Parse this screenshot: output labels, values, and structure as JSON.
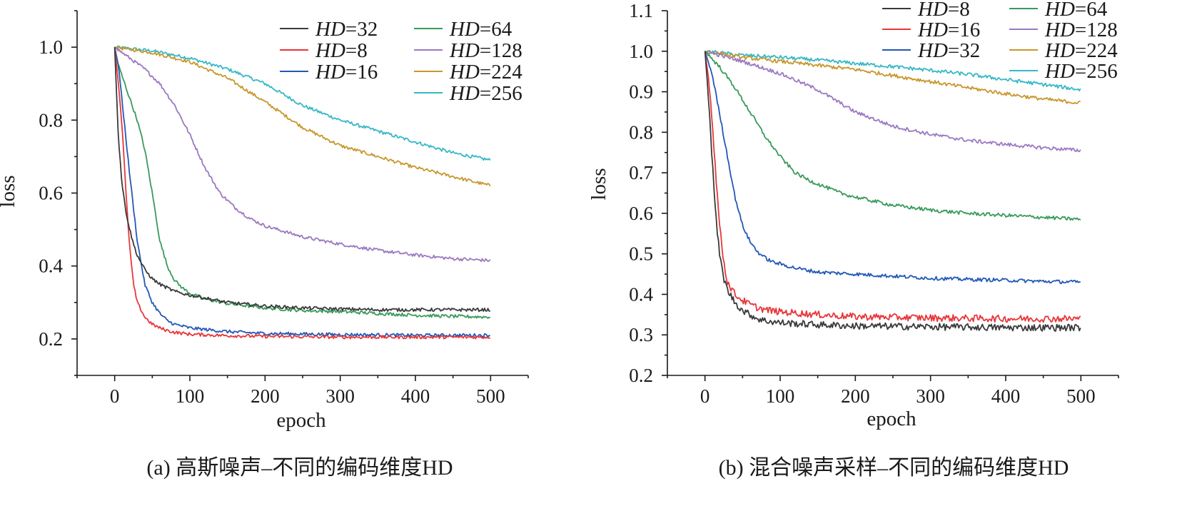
{
  "chart_data": [
    {
      "type": "line",
      "caption": "(a) 高斯噪声–不同的编码维度HD",
      "xlabel": "epoch",
      "ylabel": "loss",
      "xlim": [
        -50,
        550
      ],
      "ylim": [
        0.1,
        1.1
      ],
      "xticks": [
        0,
        100,
        200,
        300,
        400,
        500
      ],
      "yticks": [
        0.2,
        0.4,
        0.6,
        0.8,
        1.0
      ],
      "xtick_labels": [
        "0",
        "100",
        "200",
        "300",
        "400",
        "500"
      ],
      "ytick_labels": [
        "0.2",
        "0.4",
        "0.6",
        "0.8",
        "1.0"
      ],
      "legend_position": "top-right",
      "series": [
        {
          "name": "32",
          "color": "#3a3a3a",
          "x": [
            0,
            5,
            10,
            15,
            20,
            25,
            30,
            40,
            50,
            60,
            70,
            80,
            100,
            120,
            150,
            200,
            250,
            300,
            350,
            400,
            450,
            500
          ],
          "values": [
            1.0,
            0.75,
            0.62,
            0.55,
            0.5,
            0.46,
            0.43,
            0.39,
            0.365,
            0.35,
            0.34,
            0.33,
            0.32,
            0.312,
            0.3,
            0.29,
            0.285,
            0.282,
            0.28,
            0.28,
            0.28,
            0.28
          ]
        },
        {
          "name": "8",
          "color": "#e8363a",
          "x": [
            0,
            5,
            10,
            15,
            20,
            25,
            30,
            40,
            50,
            60,
            70,
            80,
            100,
            150,
            200,
            300,
            400,
            500
          ],
          "values": [
            1.0,
            0.9,
            0.78,
            0.6,
            0.45,
            0.35,
            0.3,
            0.26,
            0.24,
            0.23,
            0.223,
            0.218,
            0.213,
            0.209,
            0.207,
            0.205,
            0.205,
            0.205
          ]
        },
        {
          "name": "16",
          "color": "#2358b5",
          "x": [
            0,
            5,
            10,
            15,
            20,
            25,
            30,
            40,
            50,
            60,
            70,
            80,
            100,
            150,
            200,
            300,
            400,
            500
          ],
          "values": [
            1.0,
            0.95,
            0.85,
            0.75,
            0.65,
            0.56,
            0.47,
            0.35,
            0.3,
            0.27,
            0.25,
            0.24,
            0.23,
            0.22,
            0.215,
            0.212,
            0.21,
            0.21
          ]
        },
        {
          "name": "64",
          "color": "#3a9a5b",
          "x": [
            0,
            5,
            10,
            20,
            30,
            40,
            50,
            60,
            70,
            80,
            90,
            100,
            120,
            150,
            200,
            250,
            300,
            350,
            400,
            450,
            500
          ],
          "values": [
            1.0,
            0.95,
            0.92,
            0.86,
            0.8,
            0.72,
            0.6,
            0.47,
            0.4,
            0.36,
            0.34,
            0.325,
            0.31,
            0.297,
            0.285,
            0.278,
            0.275,
            0.27,
            0.265,
            0.262,
            0.26
          ]
        },
        {
          "name": "128",
          "color": "#9b79c2",
          "x": [
            0,
            20,
            40,
            60,
            80,
            100,
            120,
            140,
            160,
            180,
            200,
            250,
            300,
            350,
            400,
            450,
            500
          ],
          "values": [
            1.0,
            0.97,
            0.94,
            0.9,
            0.84,
            0.76,
            0.67,
            0.6,
            0.56,
            0.53,
            0.51,
            0.48,
            0.46,
            0.443,
            0.43,
            0.42,
            0.415
          ]
        },
        {
          "name": "224",
          "color": "#c8972b",
          "x": [
            0,
            50,
            100,
            150,
            200,
            250,
            300,
            350,
            400,
            450,
            500
          ],
          "values": [
            1.0,
            0.985,
            0.96,
            0.915,
            0.85,
            0.78,
            0.73,
            0.7,
            0.67,
            0.645,
            0.62
          ]
        },
        {
          "name": "256",
          "color": "#35b8c6",
          "x": [
            0,
            50,
            100,
            150,
            200,
            250,
            300,
            350,
            400,
            450,
            500
          ],
          "values": [
            1.0,
            0.99,
            0.97,
            0.94,
            0.9,
            0.84,
            0.8,
            0.77,
            0.74,
            0.71,
            0.69
          ]
        }
      ],
      "legend_order": [
        "32",
        "8",
        "16",
        "64",
        "128",
        "224",
        "256"
      ]
    },
    {
      "type": "line",
      "caption": "(b) 混合噪声采样–不同的编码维度HD",
      "xlabel": "epoch",
      "ylabel": "loss",
      "xlim": [
        -50,
        550
      ],
      "ylim": [
        0.2,
        1.1
      ],
      "xticks": [
        0,
        100,
        200,
        300,
        400,
        500
      ],
      "yticks": [
        0.2,
        0.3,
        0.4,
        0.5,
        0.6,
        0.7,
        0.8,
        0.9,
        1.0,
        1.1
      ],
      "xtick_labels": [
        "0",
        "100",
        "200",
        "300",
        "400",
        "500"
      ],
      "ytick_labels": [
        "0.2",
        "0.3",
        "0.4",
        "0.5",
        "0.6",
        "0.7",
        "0.8",
        "0.9",
        "1.0",
        "1.1"
      ],
      "legend_position": "top-right",
      "series": [
        {
          "name": "8",
          "color": "#3a3a3a",
          "x": [
            0,
            5,
            10,
            15,
            20,
            25,
            30,
            40,
            50,
            60,
            70,
            80,
            100,
            150,
            200,
            300,
            400,
            500
          ],
          "values": [
            1.0,
            0.88,
            0.72,
            0.58,
            0.49,
            0.44,
            0.41,
            0.38,
            0.36,
            0.35,
            0.34,
            0.335,
            0.33,
            0.325,
            0.322,
            0.32,
            0.318,
            0.318
          ]
        },
        {
          "name": "16",
          "color": "#e8363a",
          "x": [
            0,
            5,
            10,
            15,
            20,
            25,
            30,
            40,
            50,
            60,
            70,
            80,
            100,
            150,
            200,
            300,
            400,
            500
          ],
          "values": [
            1.0,
            0.93,
            0.82,
            0.68,
            0.56,
            0.48,
            0.43,
            0.4,
            0.385,
            0.375,
            0.367,
            0.362,
            0.357,
            0.35,
            0.345,
            0.342,
            0.34,
            0.34
          ]
        },
        {
          "name": "32",
          "color": "#2358b5",
          "x": [
            0,
            10,
            20,
            30,
            40,
            50,
            60,
            70,
            80,
            90,
            100,
            120,
            150,
            200,
            250,
            300,
            350,
            400,
            450,
            500
          ],
          "values": [
            1.0,
            0.94,
            0.84,
            0.74,
            0.64,
            0.57,
            0.53,
            0.505,
            0.49,
            0.48,
            0.475,
            0.465,
            0.455,
            0.45,
            0.445,
            0.44,
            0.437,
            0.435,
            0.432,
            0.43
          ]
        },
        {
          "name": "64",
          "color": "#3a9a5b",
          "x": [
            0,
            20,
            40,
            60,
            80,
            100,
            120,
            140,
            160,
            180,
            200,
            250,
            300,
            350,
            400,
            450,
            500
          ],
          "values": [
            1.0,
            0.96,
            0.91,
            0.85,
            0.79,
            0.74,
            0.7,
            0.68,
            0.665,
            0.65,
            0.64,
            0.62,
            0.608,
            0.6,
            0.595,
            0.59,
            0.585
          ]
        },
        {
          "name": "128",
          "color": "#9b79c2",
          "x": [
            0,
            50,
            100,
            150,
            200,
            250,
            300,
            350,
            400,
            450,
            500
          ],
          "values": [
            1.0,
            0.975,
            0.945,
            0.905,
            0.85,
            0.815,
            0.795,
            0.78,
            0.77,
            0.762,
            0.755
          ]
        },
        {
          "name": "224",
          "color": "#c8972b",
          "x": [
            0,
            50,
            100,
            150,
            200,
            250,
            300,
            350,
            400,
            450,
            500
          ],
          "values": [
            1.0,
            0.985,
            0.975,
            0.965,
            0.955,
            0.94,
            0.925,
            0.91,
            0.895,
            0.882,
            0.872
          ]
        },
        {
          "name": "256",
          "color": "#35b8c6",
          "x": [
            0,
            50,
            100,
            150,
            200,
            250,
            300,
            350,
            400,
            450,
            500
          ],
          "values": [
            1.0,
            0.99,
            0.985,
            0.978,
            0.97,
            0.962,
            0.953,
            0.943,
            0.93,
            0.918,
            0.905
          ]
        }
      ],
      "legend_order": [
        "8",
        "16",
        "32",
        "64",
        "128",
        "224",
        "256"
      ]
    }
  ],
  "legend_prefix": "HD",
  "legend_eq": "="
}
